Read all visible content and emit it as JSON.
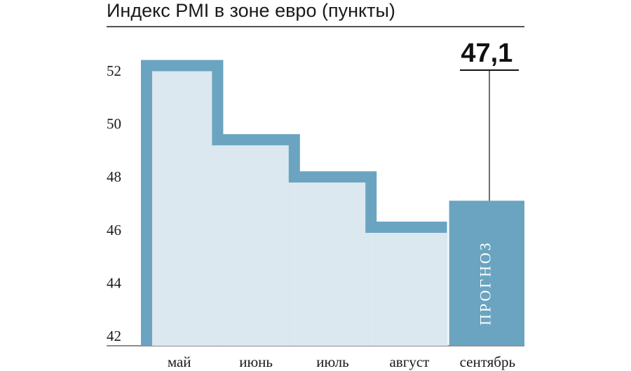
{
  "chart_data": {
    "type": "bar",
    "title": "Индекс PMI в зоне евро (пункты)",
    "categories": [
      "май",
      "июнь",
      "июль",
      "август",
      "сентябрь"
    ],
    "values": [
      52.2,
      49.4,
      48.0,
      46.1,
      47.1
    ],
    "forecast_index": 4,
    "forecast_label": "ПРОГНОЗ",
    "callout": "47,1",
    "yticks": [
      52,
      50,
      48,
      46,
      44,
      42
    ],
    "ylim": [
      42,
      53.6
    ],
    "grid": false,
    "colors": {
      "line": "#6aa4c0",
      "fill": "#dce8ef",
      "forecast": "#6aa4c0",
      "text": "#1a1a1a"
    }
  }
}
